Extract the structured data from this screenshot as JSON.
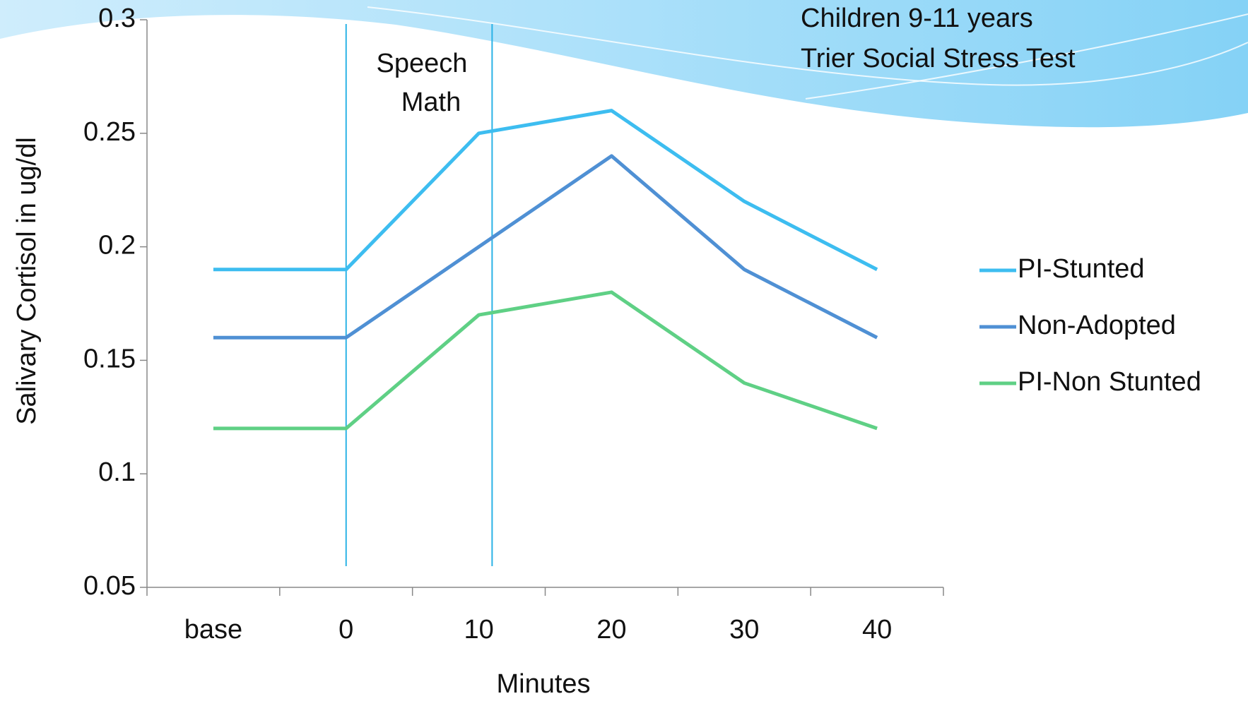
{
  "chart_data": {
    "type": "line",
    "title": [
      "Children 9-11 years",
      "Trier Social Stress Test"
    ],
    "annotations": [
      "Speech",
      "Math"
    ],
    "x_label": "Minutes",
    "y_label": "Salivary Cortisol in ug/dl",
    "categories": [
      "base",
      "0",
      "10",
      "20",
      "30",
      "40"
    ],
    "series": [
      {
        "name": "PI-Stunted",
        "color": "#3dbdf0",
        "values": [
          0.19,
          0.19,
          0.25,
          0.26,
          0.22,
          0.19
        ]
      },
      {
        "name": "Non-Adopted",
        "color": "#4f90d4",
        "values": [
          0.16,
          0.16,
          0.2,
          0.24,
          0.19,
          0.16
        ]
      },
      {
        "name": "PI-Non Stunted",
        "color": "#5fd085",
        "values": [
          0.12,
          0.12,
          0.17,
          0.18,
          0.14,
          0.12
        ]
      }
    ],
    "ylim": [
      0.05,
      0.3
    ],
    "yticks": [
      0.05,
      0.1,
      0.15,
      0.2,
      0.25,
      0.3
    ],
    "grid": false,
    "legend": "right"
  }
}
